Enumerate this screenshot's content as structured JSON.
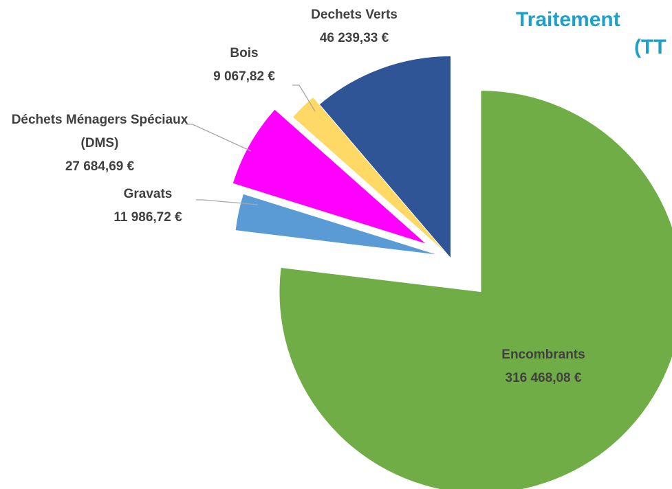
{
  "chart_data": {
    "type": "pie",
    "title": [
      "Traitement",
      "(TT"
    ],
    "categories": [
      "Encombrants",
      "Gravats",
      "Déchets Ménagers Spéciaux (DMS)",
      "Bois",
      "Dechets Verts"
    ],
    "values": [
      316468.08,
      11986.72,
      27684.69,
      9067.82,
      46239.33
    ],
    "value_labels": [
      "316 468,08 €",
      "11 986,72 €",
      "27 684,69 €",
      "9 067,82 €",
      "46 239,33 €"
    ],
    "colors": [
      "#70ad47",
      "#5b9bd5",
      "#ff00ff",
      "#ffd966",
      "#2f5597"
    ]
  }
}
